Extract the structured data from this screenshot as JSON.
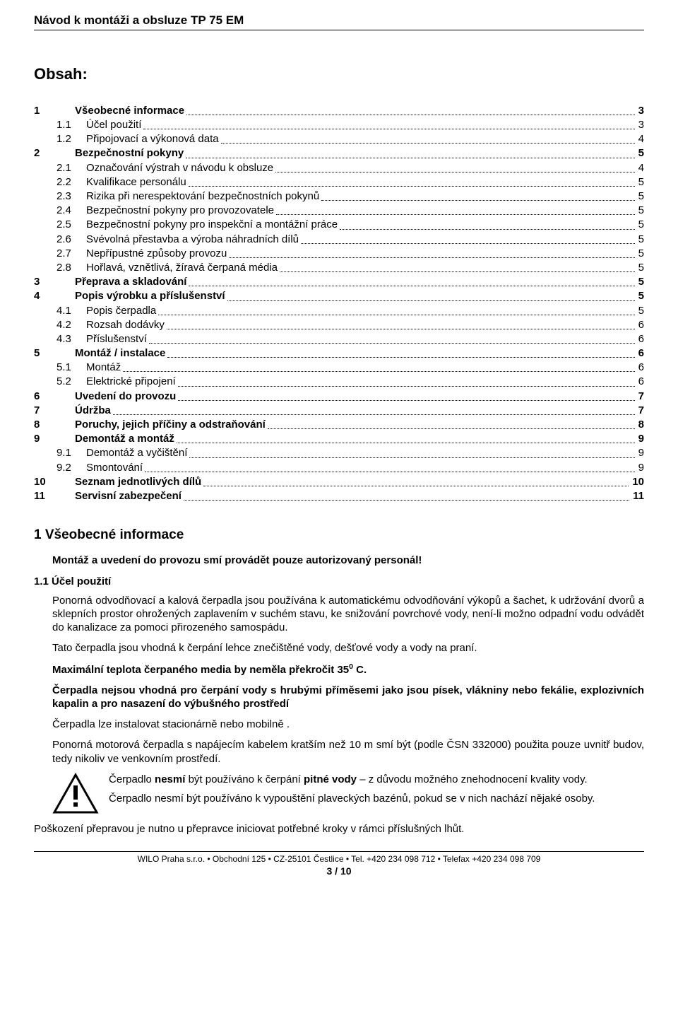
{
  "header": {
    "title": "Návod k montáži a obsluze TP 75 EM"
  },
  "obsah_heading": "Obsah:",
  "toc": [
    {
      "num": "1",
      "label": "Všeobecné informace",
      "page": "3",
      "bold": true,
      "indent": false
    },
    {
      "num": "1.1",
      "label": "Účel použití",
      "page": "3",
      "bold": false,
      "indent": true
    },
    {
      "num": "1.2",
      "label": "Připojovací a výkonová data",
      "page": "4",
      "bold": false,
      "indent": true
    },
    {
      "num": "2",
      "label": "Bezpečnostní pokyny",
      "page": "5",
      "bold": true,
      "indent": false
    },
    {
      "num": "2.1",
      "label": "Označování výstrah v návodu k obsluze",
      "page": "4",
      "bold": false,
      "indent": true
    },
    {
      "num": "2.2",
      "label": "Kvalifikace personálu",
      "page": "5",
      "bold": false,
      "indent": true
    },
    {
      "num": "2.3",
      "label": "Rizika při nerespektování bezpečnostních pokynů",
      "page": "5",
      "bold": false,
      "indent": true
    },
    {
      "num": "2.4",
      "label": "Bezpečnostní pokyny pro provozovatele",
      "page": "5",
      "bold": false,
      "indent": true
    },
    {
      "num": "2.5",
      "label": "Bezpečnostní pokyny pro inspekční a montážní práce",
      "page": "5",
      "bold": false,
      "indent": true
    },
    {
      "num": "2.6",
      "label": "Svévolná přestavba a výroba náhradních dílů",
      "page": "5",
      "bold": false,
      "indent": true
    },
    {
      "num": "2.7",
      "label": "Nepřípustné způsoby provozu",
      "page": "5",
      "bold": false,
      "indent": true
    },
    {
      "num": "2.8",
      "label": "Hořlavá, vznětlivá, žíravá čerpaná média",
      "page": "5",
      "bold": false,
      "indent": true
    },
    {
      "num": "3",
      "label": "Přeprava a skladování",
      "page": "5",
      "bold": true,
      "indent": false
    },
    {
      "num": "4",
      "label": "Popis výrobku a příslušenství",
      "page": "5",
      "bold": true,
      "indent": false
    },
    {
      "num": "4.1",
      "label": "Popis čerpadla",
      "page": "5",
      "bold": false,
      "indent": true
    },
    {
      "num": "4.2",
      "label": "Rozsah dodávky",
      "page": "6",
      "bold": false,
      "indent": true
    },
    {
      "num": "4.3",
      "label": "Příslušenství",
      "page": "6",
      "bold": false,
      "indent": true
    },
    {
      "num": "5",
      "label": "Montáž / instalace",
      "page": "6",
      "bold": true,
      "indent": false
    },
    {
      "num": "5.1",
      "label": "Montáž",
      "page": "6",
      "bold": false,
      "indent": true
    },
    {
      "num": "5.2",
      "label": "Elektrické připojení",
      "page": "6",
      "bold": false,
      "indent": true
    },
    {
      "num": "6",
      "label": "Uvedení do provozu",
      "page": "7",
      "bold": true,
      "indent": false
    },
    {
      "num": "7",
      "label": "Údržba",
      "page": "7",
      "bold": true,
      "indent": false
    },
    {
      "num": "8",
      "label": "Poruchy, jejich příčiny a odstraňování",
      "page": "8",
      "bold": true,
      "indent": false
    },
    {
      "num": "9",
      "label": "Demontáž a montáž",
      "page": "9",
      "bold": true,
      "indent": false
    },
    {
      "num": "9.1",
      "label": "Demontáž a vyčištění",
      "page": "9",
      "bold": false,
      "indent": true
    },
    {
      "num": "9.2",
      "label": "Smontování",
      "page": "9",
      "bold": false,
      "indent": true
    },
    {
      "num": "10",
      "label": "Seznam jednotlivých dílů",
      "page": "10",
      "bold": true,
      "indent": false
    },
    {
      "num": "11",
      "label": "Servisní zabezpečení",
      "page": "11",
      "bold": true,
      "indent": false
    }
  ],
  "section1_title": "1  Všeobecné informace",
  "lead": "Montáž a uvedení do provozu smí provádět pouze autorizovaný personál!",
  "subhead11": "1.1 Účel použití",
  "p1": "Ponorná odvodňovací a kalová čerpadla jsou používána k automatickému odvodňování výkopů a šachet, k udržování dvorů a sklepních prostor ohrožených zaplavením v suchém stavu, ke snižování povrchové vody, není-li možno odpadní vodu odvádět do kanalizace za pomoci přirozeného samospádu.",
  "p2": "Tato čerpadla jsou vhodná k čerpání lehce znečištěné vody, dešťové  vody a vody na praní.",
  "p3_prefix": "Maximální teplota čerpaného media by neměla překročit  35",
  "p3_suffix": " C.",
  "p4": "Čerpadla nejsou vhodná pro čerpání vody s hrubými příměsemi jako jsou písek, vlákniny nebo fekálie, explozivních kapalin a pro nasazení do výbušného prostředí",
  "p5": "Čerpadla lze instalovat stacionárně nebo mobilně .",
  "p6": "Ponorná motorová čerpadla  s napájecím kabelem kratším než 10 m smí být (podle ČSN 332000) použita pouze uvnitř budov, tedy nikoliv ve venkovním prostředí.",
  "w1a": "Čerpadlo ",
  "w1b": "nesmí",
  "w1c": " být používáno k čerpání ",
  "w1d": "pitné vody",
  "w1e": " – z důvodu možného znehodnocení kvality vody.",
  "w2": "Čerpadlo nesmí být používáno k vypouštění plaveckých bazénů, pokud se v nich nachází nějaké osoby.",
  "final": "Poškození přepravou je nutno u přepravce iniciovat potřebné kroky v rámci příslušných lhůt.",
  "footer_line": "WILO Praha s.r.o.   •   Obchodní 125   •   CZ-25101 Čestlice   •   Tel. +420 234 098 712   •   Telefax +420 234 098 709",
  "footer_page": "3 / 10"
}
